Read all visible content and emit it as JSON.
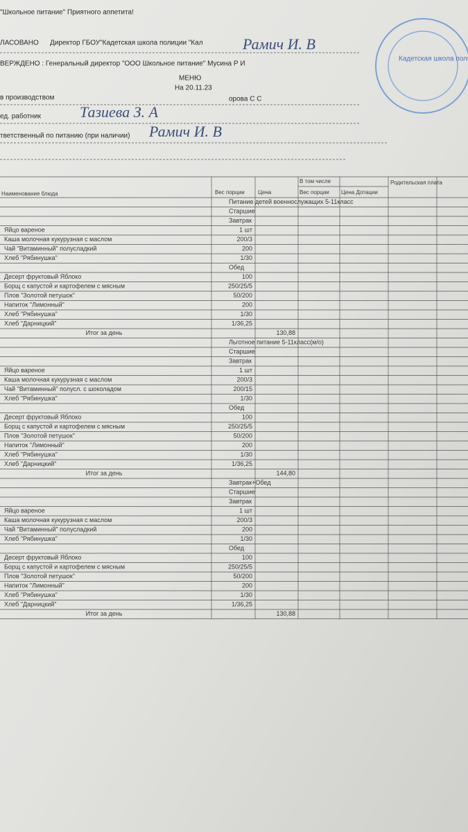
{
  "header": {
    "slogan": "\"Школьное питание\" Приятного аппетита!",
    "approved_label": "ЛАСОВАНО",
    "approved_by": "Директор ГБОУ\"Кадетская школа полиции \"Кал",
    "approved_signature": "Рамич И. В",
    "confirmed": "ВЕРЖДЕНО : Генеральный директор \"ООО Школьное питание\" Мусина Р И",
    "menu_title": "МЕНЮ",
    "date": "На 20.11.23",
    "production_label": "в производством",
    "production_name": "орова С С",
    "worker_label": "ед. работник",
    "worker_signature": "Тазиева З. А",
    "responsible_label": "тветственный по питанию (при наличии)",
    "responsible_signature": "Рамич И. В"
  },
  "stamp": {
    "text": "Кадетская школа полиции"
  },
  "table": {
    "columns": [
      "Наименование блюда",
      "Вес порции",
      "Цена",
      "В том числе",
      "Вес порции",
      "Цена Дотации",
      "Родительская плата"
    ],
    "rows": [
      {
        "label": "Питание детей военнослужащих 5-11класс"
      },
      {
        "label": "Старшие"
      },
      {
        "label": "Завтрак"
      },
      {
        "dish": "Яйцо вареное",
        "portion": "1 шт"
      },
      {
        "dish": "Каша молочная кукурузная с маслом",
        "portion": "200/3"
      },
      {
        "dish": "Чай \"Витаминный\" полусладкий",
        "portion": "200"
      },
      {
        "dish": "Хлеб \"Рябинушка\"",
        "portion": "1/30"
      },
      {
        "label": "Обед"
      },
      {
        "dish": "Десерт фруктовый Яблоко",
        "portion": "100"
      },
      {
        "dish": "Борщ с капустой и картофелем с мясным",
        "portion": "250/25/5"
      },
      {
        "dish": "Плов \"Золотой петушок\"",
        "portion": "50/200"
      },
      {
        "dish": "Напиток \"Лимонный\"",
        "portion": "200"
      },
      {
        "dish": "Хлеб \"Рябинушка\"",
        "portion": "1/30"
      },
      {
        "dish": "Хлеб \"Дарницкий\"",
        "portion": "1/36,25"
      },
      {
        "total": "Итог за день",
        "price": "130,88"
      },
      {
        "label": "Льготное питание 5-11класс(м/о)"
      },
      {
        "label": "Старшие"
      },
      {
        "label": "Завтрак"
      },
      {
        "dish": "Яйцо вареное",
        "portion": "1 шт"
      },
      {
        "dish": "Каша молочная кукурузная с маслом",
        "portion": "200/3"
      },
      {
        "dish": "Чай \"Витаминный\" полусл. с шоколадом",
        "portion": "200/15"
      },
      {
        "dish": "Хлеб \"Рябинушка\"",
        "portion": "1/30"
      },
      {
        "label": "Обед"
      },
      {
        "dish": "Десерт фруктовый Яблоко",
        "portion": "100"
      },
      {
        "dish": "Борщ с капустой и картофелем с мясным",
        "portion": "250/25/5"
      },
      {
        "dish": "Плов \"Золотой петушок\"",
        "portion": "50/200"
      },
      {
        "dish": "Напиток \"Лимонный\"",
        "portion": "200"
      },
      {
        "dish": "Хлеб \"Рябинушка\"",
        "portion": "1/30"
      },
      {
        "dish": "Хлеб \"Дарницкий\"",
        "portion": "1/36,25"
      },
      {
        "total": "Итог за день",
        "price": "144,80"
      },
      {
        "label": "Завтрак+Обед"
      },
      {
        "label": "Старшие"
      },
      {
        "label": "Завтрак"
      },
      {
        "dish": "Яйцо вареное",
        "portion": "1 шт"
      },
      {
        "dish": "Каша молочная кукурузная с маслом",
        "portion": "200/3"
      },
      {
        "dish": "Чай \"Витаминный\" полусладкий",
        "portion": "200"
      },
      {
        "dish": "Хлеб \"Рябинушка\"",
        "portion": "1/30"
      },
      {
        "label": "Обед"
      },
      {
        "dish": "Десерт фруктовый Яблоко",
        "portion": "100"
      },
      {
        "dish": "Борщ с капустой и картофелем с мясным",
        "portion": "250/25/5"
      },
      {
        "dish": "Плов \"Золотой петушок\"",
        "portion": "50/200"
      },
      {
        "dish": "Напиток \"Лимонный\"",
        "portion": "200"
      },
      {
        "dish": "Хлеб \"Рябинушка\"",
        "portion": "1/30"
      },
      {
        "dish": "Хлеб \"Дарницкий\"",
        "portion": "1/36,25"
      },
      {
        "total": "Итог за день",
        "price": "130,88"
      }
    ]
  }
}
